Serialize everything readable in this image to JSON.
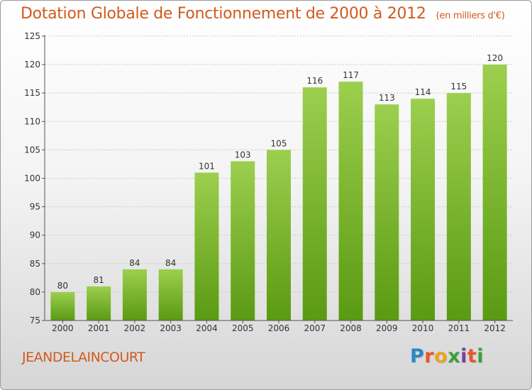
{
  "title": "Dotation Globale de Fonctionnement de 2000 à 2012",
  "unit": "(en milliers d'€)",
  "commune": "JEANDELAINCOURT",
  "logo": {
    "letters": [
      "P",
      "r",
      "o",
      "x",
      "i",
      "t",
      "i"
    ],
    "colors": [
      "#2a86c8",
      "#e8562a",
      "#f0a020",
      "#3aa03a",
      "#7a3fa0",
      "#e8562a",
      "#3aa03a"
    ]
  },
  "colors": {
    "title": "#d05a1e",
    "bar_top": "#9ccf4e",
    "bar_bottom": "#5a9a12",
    "axis": "#555555",
    "grid": "#c8c8c8"
  },
  "chart_data": {
    "type": "bar",
    "categories": [
      "2000",
      "2001",
      "2002",
      "2003",
      "2004",
      "2005",
      "2006",
      "2007",
      "2008",
      "2009",
      "2010",
      "2011",
      "2012"
    ],
    "values": [
      80,
      81,
      84,
      84,
      101,
      103,
      105,
      116,
      117,
      113,
      114,
      115,
      120
    ],
    "data_labels": [
      "80",
      "81",
      "84",
      "84",
      "101",
      "103",
      "105",
      "116",
      "117",
      "113",
      "114",
      "115",
      "120"
    ],
    "y_ticks": [
      "75",
      "80",
      "85",
      "90",
      "95",
      "100",
      "105",
      "110",
      "115",
      "120",
      "125"
    ],
    "ylim": [
      75,
      125
    ],
    "grid": true,
    "xlabel": "",
    "ylabel": ""
  }
}
